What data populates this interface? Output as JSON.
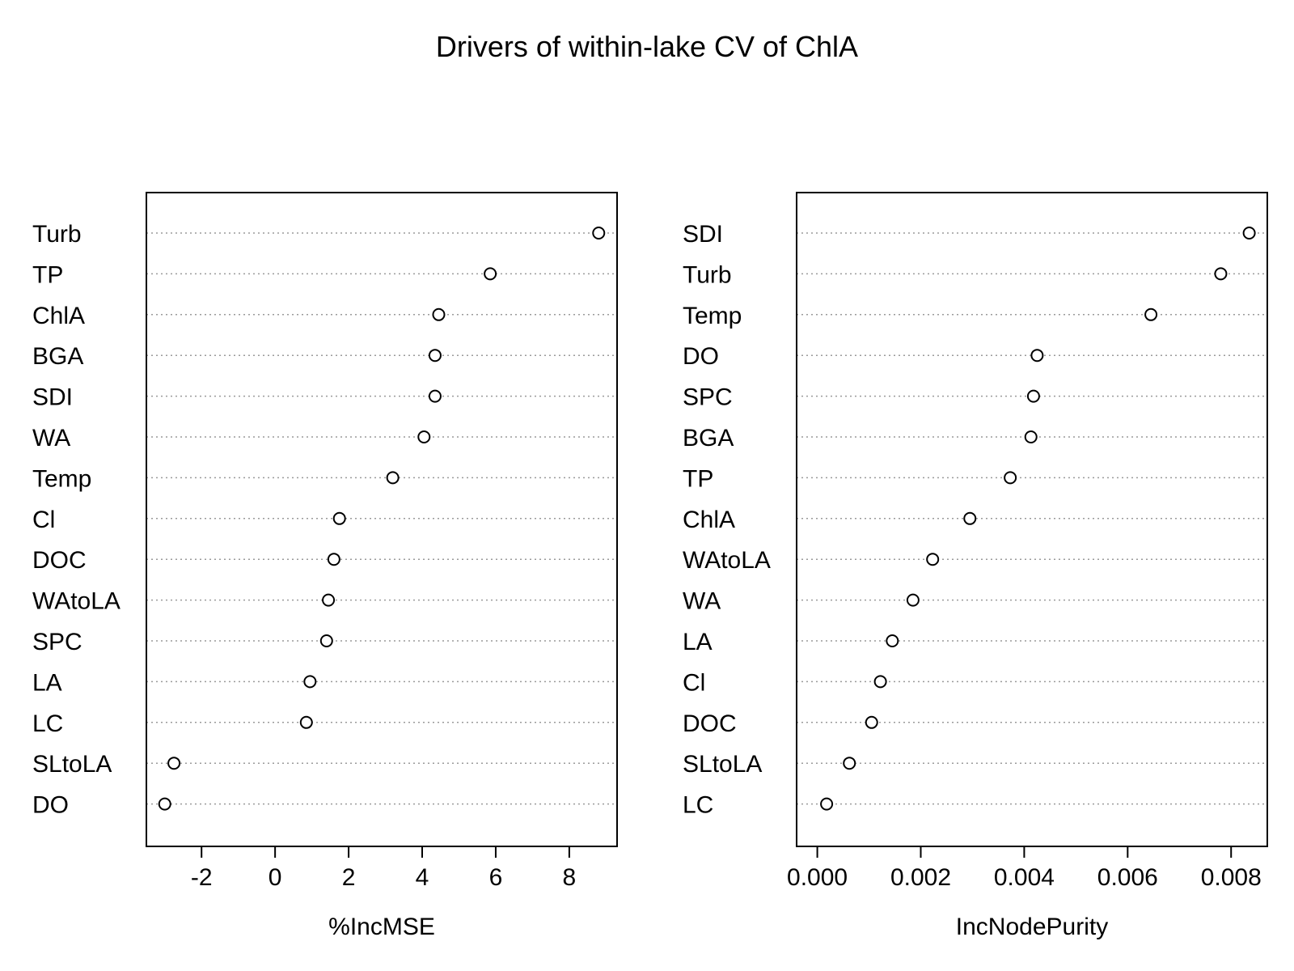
{
  "title": "Drivers of within-lake CV of ChlA",
  "chart_data": [
    {
      "type": "scatter",
      "xlabel": "%IncMSE",
      "xlim": [
        -3.5,
        9.3
      ],
      "xticks": [
        -2,
        0,
        2,
        4,
        6,
        8
      ],
      "xtick_labels": [
        "-2",
        "0",
        "2",
        "4",
        "6",
        "8"
      ],
      "categories": [
        "Turb",
        "TP",
        "ChlA",
        "BGA",
        "SDI",
        "WA",
        "Temp",
        "Cl",
        "DOC",
        "WAtoLA",
        "SPC",
        "LA",
        "LC",
        "SLtoLA",
        "DO"
      ],
      "values": [
        8.8,
        5.85,
        4.45,
        4.35,
        4.35,
        4.05,
        3.2,
        1.75,
        1.6,
        1.45,
        1.4,
        0.95,
        0.85,
        -2.75,
        -3.0
      ],
      "grid": "dotted horizontal guides"
    },
    {
      "type": "scatter",
      "xlabel": "IncNodePurity",
      "xlim": [
        -0.0004,
        0.0087
      ],
      "xticks": [
        0.0,
        0.002,
        0.004,
        0.006,
        0.008
      ],
      "xtick_labels": [
        "0.000",
        "0.002",
        "0.004",
        "0.006",
        "0.008"
      ],
      "categories": [
        "SDI",
        "Turb",
        "Temp",
        "DO",
        "SPC",
        "BGA",
        "TP",
        "ChlA",
        "WAtoLA",
        "WA",
        "LA",
        "Cl",
        "DOC",
        "SLtoLA",
        "LC"
      ],
      "values": [
        0.00835,
        0.0078,
        0.00645,
        0.00425,
        0.00418,
        0.00413,
        0.00373,
        0.00295,
        0.00223,
        0.00185,
        0.00145,
        0.00122,
        0.00105,
        0.00062,
        0.00018
      ],
      "grid": "dotted horizontal guides"
    }
  ]
}
